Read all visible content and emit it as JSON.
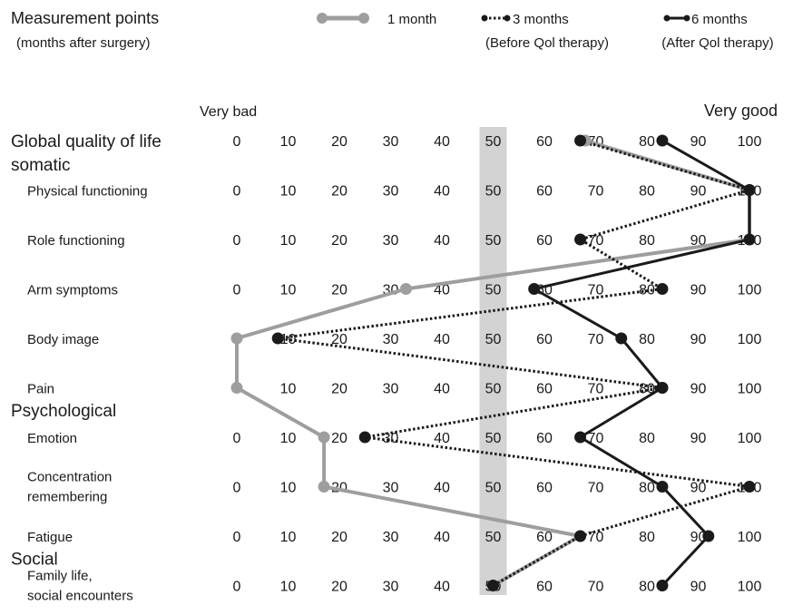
{
  "header": {
    "title": "Measurement points",
    "subtitle": "(months after surgery)",
    "scale_low": "Very bad",
    "scale_high": "Very good"
  },
  "chart_data": {
    "type": "line",
    "orientation": "horizontal-profile",
    "xlim": [
      0,
      100
    ],
    "ticks": [
      0,
      10,
      20,
      30,
      40,
      50,
      60,
      70,
      80,
      90,
      100
    ],
    "highlight_value": 50,
    "sections": [
      {
        "label": "Global quality of life",
        "row": 0
      },
      {
        "label": "somatic",
        "row": 0.5
      },
      {
        "label": "Psychological",
        "row": 5.5
      },
      {
        "label": "Social",
        "row": 8.5
      }
    ],
    "categories": [
      {
        "line1": "",
        "line2": ""
      },
      {
        "line1": "Physical functioning",
        "line2": ""
      },
      {
        "line1": "Role functioning",
        "line2": ""
      },
      {
        "line1": "Arm symptoms",
        "line2": ""
      },
      {
        "line1": "Body image",
        "line2": ""
      },
      {
        "line1": "Pain",
        "line2": ""
      },
      {
        "line1": "Emotion",
        "line2": ""
      },
      {
        "line1": "Concentration",
        "line2": "remembering"
      },
      {
        "line1": "Fatigue",
        "line2": ""
      },
      {
        "line1": "Family life,",
        "line2": "social encounters"
      }
    ],
    "series": [
      {
        "name": "1 month",
        "sublabel": "",
        "style": "solid",
        "color": "#9e9e9e",
        "values": [
          68,
          100,
          100,
          33,
          0,
          0,
          17,
          17,
          67,
          50
        ]
      },
      {
        "name": "3 months",
        "sublabel": "(Before Qol therapy)",
        "style": "dotted",
        "color": "#1a1a1a",
        "values": [
          67,
          100,
          67,
          83,
          8,
          83,
          25,
          100,
          67,
          50
        ]
      },
      {
        "name": "6 months",
        "sublabel": "(After Qol therapy)",
        "style": "solid",
        "color": "#1a1a1a",
        "values": [
          83,
          100,
          100,
          58,
          75,
          83,
          67,
          83,
          92,
          83
        ]
      }
    ]
  }
}
